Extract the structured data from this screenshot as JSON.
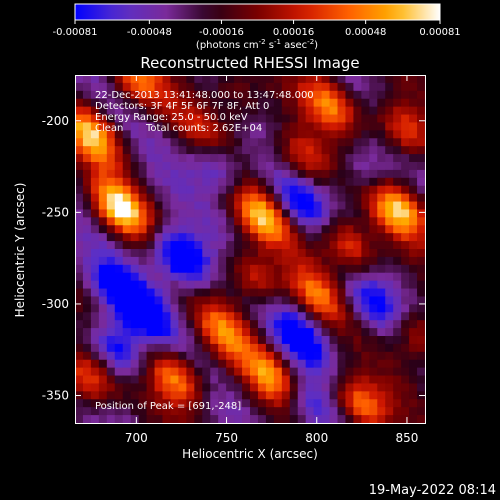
{
  "chart_data": {
    "type": "heatmap",
    "title": "Reconstructed RHESSI Image",
    "xlabel": "Heliocentric X (arcsec)",
    "ylabel": "Heliocentric Y (arcsec)",
    "xlim": [
      666,
      860
    ],
    "ylim": [
      -365,
      -175
    ],
    "xticks": [
      "700",
      "750",
      "800",
      "850"
    ],
    "xtick_values": [
      700,
      750,
      800,
      850
    ],
    "yticks": [
      "-200",
      "-250",
      "-300",
      "-350"
    ],
    "ytick_values": [
      -200,
      -250,
      -300,
      -350
    ],
    "colorbar": {
      "range": [
        -0.00081,
        0.00081
      ],
      "tick_labels": [
        "-0.00081",
        "-0.00048",
        "-0.00016",
        "0.00016",
        "0.00048",
        "0.00081"
      ],
      "tick_values": [
        -0.00081,
        -0.00048,
        -0.00016,
        0.00016,
        0.00048,
        0.00081
      ],
      "unit_parts": [
        "(photons cm",
        "-2",
        " s",
        "-1",
        " asec",
        "-2",
        ")"
      ],
      "colormap": [
        "#0000ff",
        "#5a2fc8",
        "#7a2a9a",
        "#2a0018",
        "#7a0000",
        "#d01800",
        "#ff6000",
        "#ffb000",
        "#ffffff"
      ]
    },
    "annotations": [
      "22-Dec-2013 13:41:48.000 to 13:47:48.000",
      "Detectors: 3F 4F 5F 6F 7F 8F, Att 0",
      "Energy Range: 25.0 - 50.0 keV",
      "Clean",
      "Total counts: 2.62E+04"
    ],
    "peak_label": "Position of Peak = [691,-248]",
    "peak": [
      691,
      -248
    ],
    "blobs": [
      {
        "x": 691,
        "y": -248,
        "v": 1.0
      },
      {
        "x": 676,
        "y": -208,
        "v": 0.85
      },
      {
        "x": 672,
        "y": -340,
        "v": 0.75
      },
      {
        "x": 700,
        "y": -178,
        "v": 0.65
      },
      {
        "x": 770,
        "y": -252,
        "v": 0.82
      },
      {
        "x": 765,
        "y": -285,
        "v": 0.6
      },
      {
        "x": 748,
        "y": -315,
        "v": 0.62
      },
      {
        "x": 722,
        "y": -340,
        "v": 0.8
      },
      {
        "x": 775,
        "y": -340,
        "v": 0.72
      },
      {
        "x": 808,
        "y": -190,
        "v": 0.7
      },
      {
        "x": 792,
        "y": -220,
        "v": 0.6
      },
      {
        "x": 848,
        "y": -205,
        "v": 0.68
      },
      {
        "x": 845,
        "y": -248,
        "v": 0.9
      },
      {
        "x": 818,
        "y": -268,
        "v": 0.72
      },
      {
        "x": 800,
        "y": -295,
        "v": 0.58
      },
      {
        "x": 825,
        "y": -355,
        "v": 0.85
      },
      {
        "x": 858,
        "y": -318,
        "v": 0.55
      },
      {
        "x": 735,
        "y": -205,
        "v": 0.35
      },
      {
        "x": 756,
        "y": -185,
        "v": 0.38
      }
    ],
    "troughs": [
      {
        "x": 725,
        "y": -275,
        "v": -0.95
      },
      {
        "x": 705,
        "y": -305,
        "v": -0.6
      },
      {
        "x": 790,
        "y": -245,
        "v": -0.55
      },
      {
        "x": 745,
        "y": -225,
        "v": -0.45
      },
      {
        "x": 830,
        "y": -300,
        "v": -0.5
      },
      {
        "x": 795,
        "y": -355,
        "v": -0.5
      },
      {
        "x": 686,
        "y": -290,
        "v": -0.45
      },
      {
        "x": 690,
        "y": -325,
        "v": -0.7
      },
      {
        "x": 790,
        "y": -318,
        "v": -0.55
      },
      {
        "x": 828,
        "y": -228,
        "v": -0.4
      }
    ]
  },
  "footer": {
    "date": "19-May-2022 08:14"
  }
}
